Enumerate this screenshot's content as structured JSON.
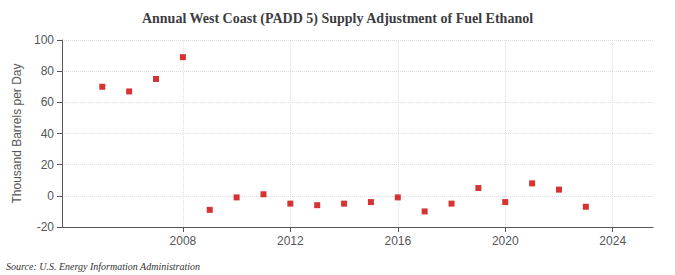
{
  "chart_data": {
    "type": "scatter",
    "title": "Annual West Coast (PADD 5) Supply Adjustment of Fuel Ethanol",
    "ylabel": "Thousand Barrels per Day",
    "annotations": [
      "Source: U.S. Energy Information Administration"
    ],
    "x": [
      2005,
      2006,
      2007,
      2008,
      2009,
      2010,
      2011,
      2012,
      2013,
      2014,
      2015,
      2016,
      2017,
      2018,
      2019,
      2020,
      2021,
      2022,
      2023,
      2024
    ],
    "values": [
      70,
      67,
      75,
      89,
      -9,
      -1,
      1,
      -5,
      -6,
      -5,
      -4,
      -1,
      -10,
      -5,
      5,
      -4,
      8,
      4,
      -7,
      null
    ],
    "color": "#cc0000",
    "marker": "square",
    "xlim": [
      2003.5,
      2025.5
    ],
    "xticks": [
      2008,
      2012,
      2016,
      2020,
      2024
    ],
    "ylim": [
      -20,
      100
    ],
    "yticks": [
      -20,
      0,
      20,
      40,
      60,
      80,
      100
    ],
    "grid": true
  }
}
